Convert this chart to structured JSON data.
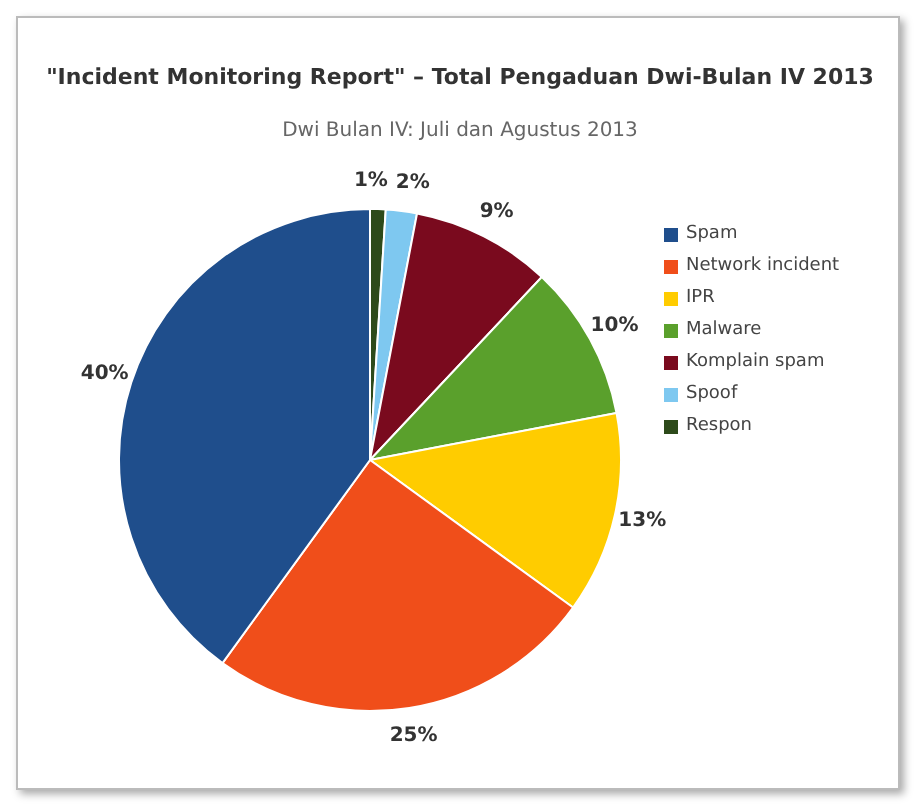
{
  "chart_data": {
    "type": "pie",
    "title": "\"Incident Monitoring Report\" – Total Pengaduan Dwi-Bulan IV 2013",
    "subtitle": "Dwi Bulan IV: Juli dan Agustus 2013",
    "categories": [
      "Spam",
      "Network incident",
      "IPR",
      "Malware",
      "Komplain spam",
      "Spoof",
      "Respon"
    ],
    "values": [
      40,
      25,
      13,
      10,
      9,
      2,
      1
    ],
    "colors": [
      "#1f4e8c",
      "#f04e1a",
      "#ffcc00",
      "#5aa02c",
      "#7a0a1e",
      "#7ec8f0",
      "#2d4a1a"
    ],
    "value_labels": [
      "40%",
      "25%",
      "13%",
      "10%",
      "9%",
      "2%",
      "1%"
    ],
    "legend": "right"
  }
}
